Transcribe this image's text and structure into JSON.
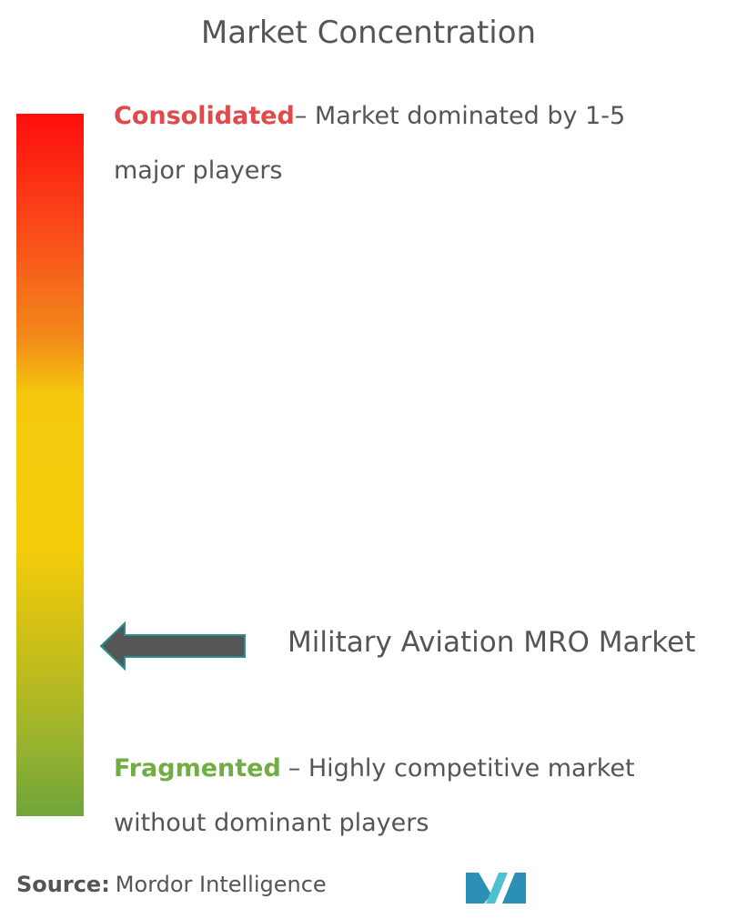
{
  "title": "Market Concentration",
  "consolidated": {
    "label": "Consolidated",
    "description": "– Market dominated by 1-5 major players"
  },
  "market": "Military Aviation MRO Market",
  "fragmented": {
    "label": "Fragmented",
    "description": "– Highly competitive market without dominant players"
  },
  "source": {
    "label": "Source:",
    "text": "Mordor Intelligence"
  }
}
